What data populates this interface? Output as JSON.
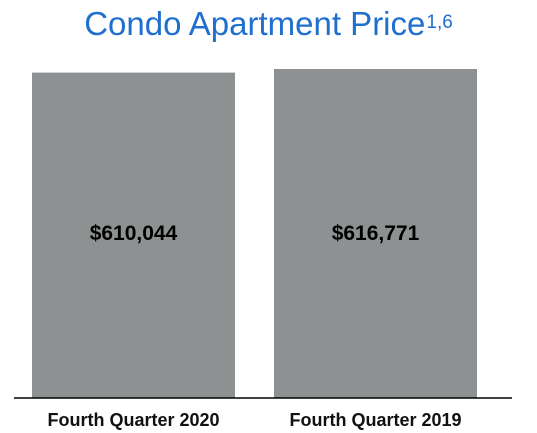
{
  "chart_data": {
    "type": "bar",
    "title": "Condo Apartment Price",
    "title_superscript": "1,6",
    "categories": [
      "Fourth Quarter 2020",
      "Fourth Quarter 2019"
    ],
    "values": [
      610044,
      616771
    ],
    "data_labels": [
      "$610,044",
      "$616,771"
    ],
    "bar_color": "#8e9192",
    "title_color": "#1f6fcf",
    "grid": false,
    "legend": "none"
  }
}
